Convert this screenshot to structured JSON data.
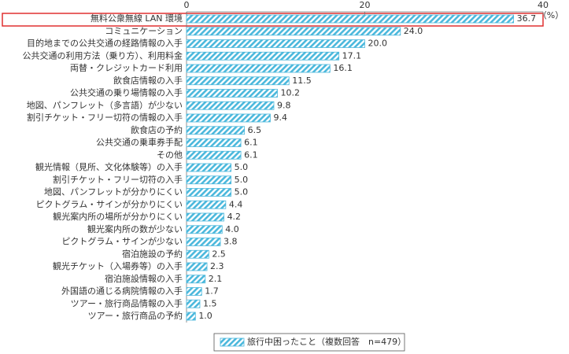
{
  "chart_data": {
    "type": "bar",
    "orientation": "horizontal",
    "unit": "（%）",
    "categories": [
      "無料公衆無線 LAN 環境",
      "コミュニケーション",
      "目的地までの公共交通の経路情報の入手",
      "公共交通の利用方法（乗り方）、利用料金",
      "両替・クレジットカード利用",
      "飲食店情報の入手",
      "公共交通の乗り場情報の入手",
      "地図、パンフレット（多言語）が少ない",
      "割引チケット・フリー切符の情報の入手",
      "飲食店の予約",
      "公共交通の乗車券手配",
      "その他",
      "観光情報（見所、文化体験等）の入手",
      "割引チケット・フリー切符の入手",
      "地図、パンフレットが分かりにくい",
      "ピクトグラム・サインが分かりにくい",
      "観光案内所の場所が分かりにくい",
      "観光案内所の数が少ない",
      "ピクトグラム・サインが少ない",
      "宿泊施設の予約",
      "観光チケット（入場券等）の入手",
      "宿泊施設情報の入手",
      "外国語の通じる病院情報の入手",
      "ツアー・旅行商品情報の入手",
      "ツアー・旅行商品の予約"
    ],
    "series": [
      {
        "name": "旅行中困ったこと（複数回答　n=479）",
        "color": "#4bb8dc",
        "values": [
          36.7,
          24,
          20,
          17.1,
          16.1,
          11.5,
          10.2,
          9.8,
          9.4,
          6.5,
          6.1,
          6.1,
          5,
          5,
          5,
          4.4,
          4.2,
          4,
          3.8,
          2.5,
          2.3,
          2.1,
          1.7,
          1.5,
          1
        ],
        "value_labels": [
          "36.7",
          "24.0",
          "20.0",
          "17.1",
          "16.1",
          "11.5",
          "10.2",
          "9.8",
          "9.4",
          "6.5",
          "6.1",
          "6.1",
          "5.0",
          "5.0",
          "5.0",
          "4.4",
          "4.2",
          "4.0",
          "3.8",
          "2.5",
          "2.3",
          "2.1",
          "1.7",
          "1.5",
          "1.0"
        ]
      }
    ],
    "xlim": [
      0,
      40
    ],
    "xticks": [
      0,
      20,
      40
    ]
  }
}
